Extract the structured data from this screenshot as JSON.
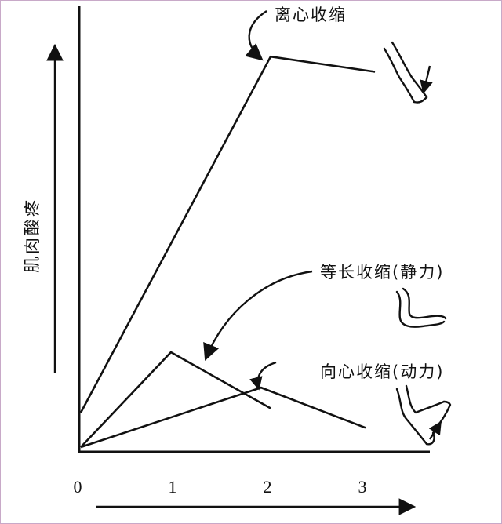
{
  "chart_data": {
    "type": "line",
    "title": "",
    "xlabel": "",
    "ylabel": "肌肉酸疼",
    "x_ticks": [
      "0",
      "1",
      "2",
      "3"
    ],
    "xlim": [
      0,
      3.5
    ],
    "ylim": [
      0,
      10
    ],
    "grid": false,
    "legend": "none",
    "series": [
      {
        "name": "离心收缩",
        "x": [
          0,
          2,
          3.1
        ],
        "y": [
          0.8,
          9.05,
          8.7
        ]
      },
      {
        "name": "等长收缩(静力)",
        "x": [
          0,
          0.95,
          2
        ],
        "y": [
          0,
          2.2,
          0.9
        ]
      },
      {
        "name": "向心收缩(动力)",
        "x": [
          0,
          1.9,
          3
        ],
        "y": [
          0,
          1.38,
          0.45
        ]
      }
    ],
    "annotations": [
      "离心收缩",
      "等长收缩(静力)",
      "向心收缩(动力)"
    ]
  }
}
